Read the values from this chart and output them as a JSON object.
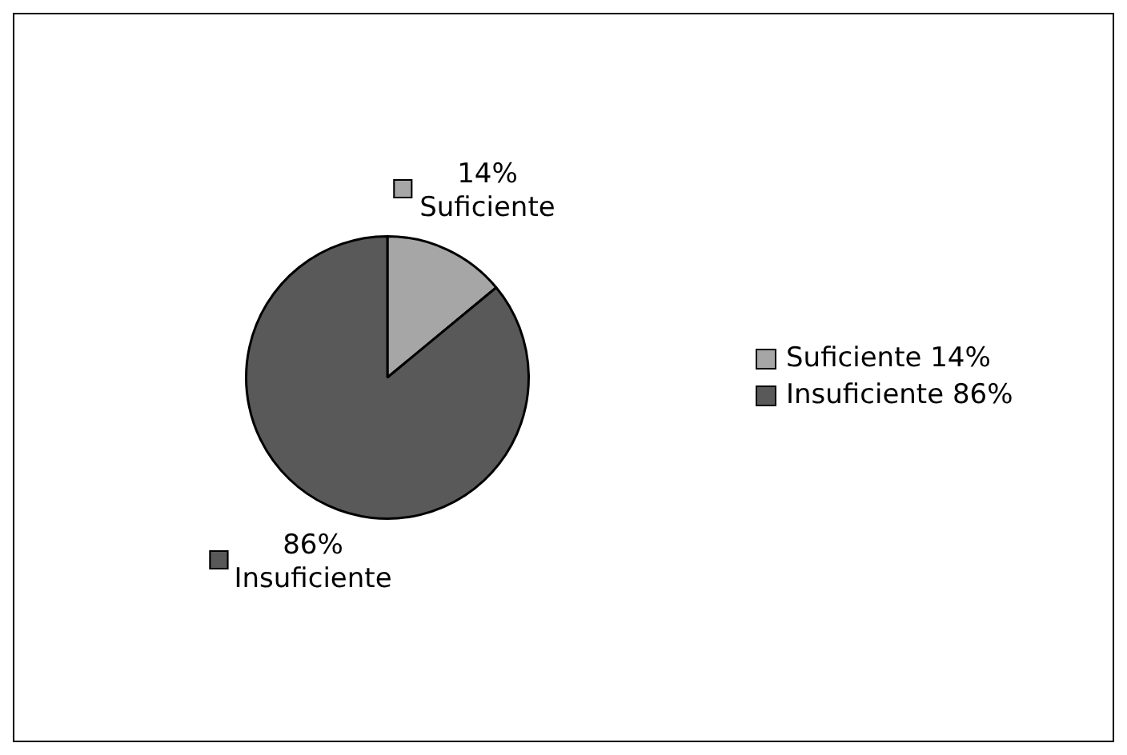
{
  "chart_data": {
    "type": "pie",
    "categories": [
      "Suficiente",
      "Insuficiente"
    ],
    "values": [
      14,
      86
    ],
    "colors": [
      "#a6a6a6",
      "#595959"
    ],
    "value_labels": [
      "14%",
      "86%"
    ],
    "data_labels": true,
    "legend": "right"
  }
}
